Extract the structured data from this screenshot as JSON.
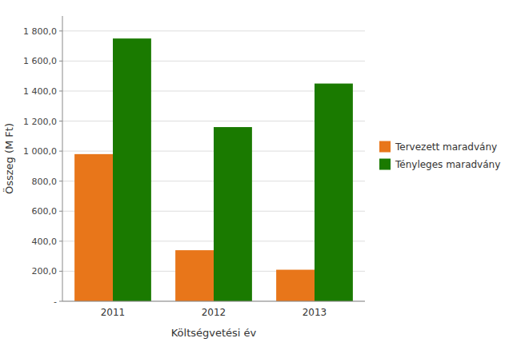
{
  "chart_data": {
    "type": "bar",
    "categories": [
      "2011",
      "2012",
      "2013"
    ],
    "series": [
      {
        "name": "Tervezett maradvány",
        "color": "#E8761A",
        "values": [
          980,
          340,
          210
        ]
      },
      {
        "name": "Tényleges maradvány",
        "color": "#1A7A00",
        "values": [
          1750,
          1160,
          1450
        ]
      }
    ],
    "xlabel": "Költségvetési év",
    "ylabel": "Összeg (M Ft)",
    "ylim": [
      0,
      1900
    ],
    "yticks": [
      {
        "value": 0,
        "label": "-"
      },
      {
        "value": 200,
        "label": "200,0"
      },
      {
        "value": 400,
        "label": "400,0"
      },
      {
        "value": 600,
        "label": "600,0"
      },
      {
        "value": 800,
        "label": "800,0"
      },
      {
        "value": 1000,
        "label": "1 000,0"
      },
      {
        "value": 1200,
        "label": "1 200,0"
      },
      {
        "value": 1400,
        "label": "1 400,0"
      },
      {
        "value": 1600,
        "label": "1 600,0"
      },
      {
        "value": 1800,
        "label": "1 800,0"
      }
    ],
    "grid": true,
    "legend": "right"
  }
}
